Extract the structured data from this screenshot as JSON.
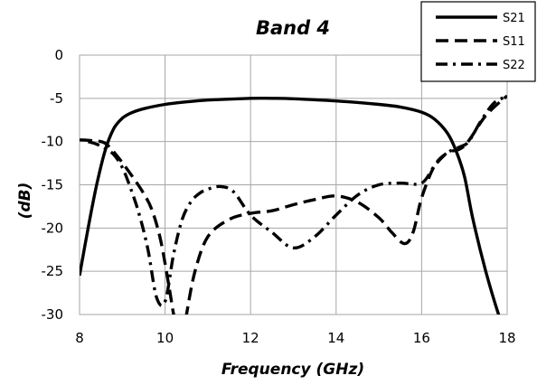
{
  "chart_data": {
    "type": "line",
    "title": "Band 4",
    "xlabel": "Frequency (GHz)",
    "ylabel": "(dB)",
    "xlim": [
      8,
      18
    ],
    "ylim": [
      -30,
      0
    ],
    "x_ticks": [
      8,
      10,
      12,
      14,
      16,
      18
    ],
    "y_ticks": [
      0,
      -5,
      -10,
      -15,
      -20,
      -25,
      -30
    ],
    "grid": true,
    "legend_position": "top-right",
    "series": [
      {
        "name": "S21",
        "style": "solid",
        "x": [
          8.0,
          8.2,
          8.4,
          8.6,
          8.8,
          9.0,
          9.2,
          9.5,
          10.0,
          10.5,
          11.0,
          12.0,
          12.5,
          13.0,
          14.0,
          15.0,
          15.5,
          16.0,
          16.3,
          16.6,
          16.8,
          17.0,
          17.2,
          17.5,
          17.8,
          18.0
        ],
        "y": [
          -25.5,
          -20.0,
          -15.0,
          -11.0,
          -8.5,
          -7.3,
          -6.7,
          -6.2,
          -5.7,
          -5.4,
          -5.2,
          -5.0,
          -5.0,
          -5.05,
          -5.3,
          -5.7,
          -6.0,
          -6.6,
          -7.4,
          -9.0,
          -11.0,
          -14.0,
          -19.0,
          -25.0,
          -30.0,
          -32.5
        ]
      },
      {
        "name": "S11",
        "style": "dashed",
        "x": [
          8.0,
          8.3,
          8.6,
          8.9,
          9.2,
          9.5,
          9.7,
          9.9,
          10.1,
          10.2,
          10.3,
          10.4,
          10.5,
          10.7,
          11.0,
          11.5,
          12.0,
          12.5,
          13.0,
          13.5,
          14.0,
          14.5,
          15.0,
          15.3,
          15.6,
          15.8,
          16.0,
          16.3,
          16.6,
          17.0,
          17.5,
          18.0
        ],
        "y": [
          -9.8,
          -9.9,
          -10.2,
          -11.8,
          -13.8,
          -16.0,
          -18.0,
          -21.5,
          -27.0,
          -30.0,
          -32.0,
          -33.0,
          -30.0,
          -25.0,
          -21.0,
          -19.0,
          -18.3,
          -18.0,
          -17.3,
          -16.7,
          -16.3,
          -17.0,
          -18.8,
          -20.5,
          -21.8,
          -20.5,
          -16.5,
          -12.8,
          -11.3,
          -10.5,
          -7.0,
          -4.7
        ]
      },
      {
        "name": "S22",
        "style": "dashdot",
        "x": [
          8.2,
          8.4,
          8.6,
          8.8,
          9.0,
          9.2,
          9.4,
          9.6,
          9.8,
          10.0,
          10.2,
          10.4,
          10.6,
          10.8,
          11.0,
          11.3,
          11.6,
          12.0,
          12.5,
          13.0,
          13.5,
          14.0,
          14.5,
          15.0,
          15.5,
          16.0,
          16.3,
          16.6,
          16.9,
          17.1,
          17.4,
          17.7,
          18.0
        ],
        "y": [
          -10.0,
          -10.3,
          -10.8,
          -11.5,
          -13.0,
          -15.5,
          -18.5,
          -22.5,
          -28.0,
          -28.5,
          -23.0,
          -19.0,
          -17.0,
          -16.0,
          -15.5,
          -15.2,
          -15.8,
          -18.5,
          -20.5,
          -22.3,
          -21.0,
          -18.5,
          -16.2,
          -15.0,
          -14.8,
          -14.8,
          -12.8,
          -11.3,
          -10.6,
          -10.0,
          -7.5,
          -5.5,
          -4.8
        ]
      }
    ]
  }
}
